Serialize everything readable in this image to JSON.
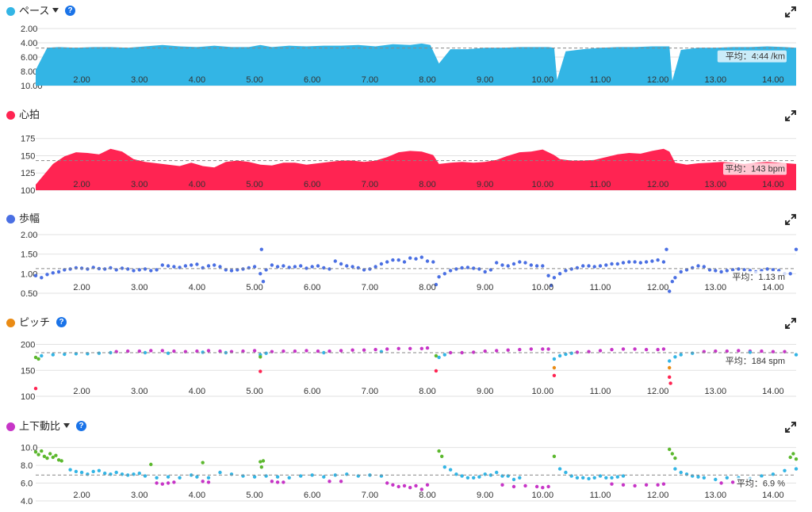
{
  "x_ticks": [
    "2.00",
    "3.00",
    "4.00",
    "5.00",
    "6.00",
    "7.00",
    "8.00",
    "9.00",
    "10.00",
    "11.00",
    "12.00",
    "13.00",
    "14.00"
  ],
  "panels": [
    {
      "id": "pace",
      "title": "ペース",
      "color": "#33b5e5",
      "has_dropdown": true,
      "has_help": true,
      "help_label": "?",
      "avg_label": "平均：4:44 /km"
    },
    {
      "id": "hr",
      "title": "心拍",
      "color": "#ff2452",
      "has_dropdown": false,
      "has_help": false,
      "avg_label": "平均：143 bpm"
    },
    {
      "id": "stride",
      "title": "歩幅",
      "color": "#4a6fe3",
      "has_dropdown": false,
      "has_help": false,
      "avg_label": "平均：1.13 m"
    },
    {
      "id": "cadence",
      "title": "ピッチ",
      "color": "#ea8b14",
      "has_dropdown": false,
      "has_help": true,
      "help_label": "?",
      "avg_label": "平均：184 spm"
    },
    {
      "id": "vr",
      "title": "上下動比",
      "color": "#c735c7",
      "has_dropdown": true,
      "has_help": true,
      "help_label": "?",
      "avg_label": "平均：6.9 %"
    }
  ],
  "chart_data": [
    {
      "type": "area",
      "title": "ペース",
      "y_unit": "min/km",
      "y_reversed": true,
      "y_ticks": [
        "2.00",
        "4.00",
        "6.00",
        "8.00",
        "10.00"
      ],
      "ylim": [
        10,
        2
      ],
      "xlim": [
        1.2,
        14.4
      ],
      "average": 4.73,
      "x": [
        1.2,
        1.4,
        1.6,
        1.9,
        2.2,
        2.5,
        2.8,
        3.1,
        3.4,
        3.7,
        4.0,
        4.3,
        4.6,
        4.9,
        5.1,
        5.3,
        5.6,
        5.9,
        6.2,
        6.5,
        6.8,
        7.1,
        7.4,
        7.7,
        7.9,
        8.05,
        8.2,
        8.4,
        8.7,
        9.0,
        9.3,
        9.6,
        9.9,
        10.1,
        10.2,
        10.25,
        10.4,
        10.7,
        11.0,
        11.3,
        11.6,
        11.9,
        12.1,
        12.2,
        12.25,
        12.4,
        12.7,
        13.0,
        13.3,
        13.6,
        13.9,
        14.2,
        14.4
      ],
      "values": [
        7.8,
        4.7,
        4.6,
        4.7,
        4.6,
        4.6,
        4.7,
        4.5,
        4.3,
        4.5,
        4.6,
        4.4,
        4.6,
        4.6,
        4.3,
        4.6,
        4.4,
        4.5,
        4.4,
        4.4,
        4.3,
        4.5,
        4.2,
        4.3,
        4.1,
        4.3,
        6.9,
        4.9,
        4.9,
        4.7,
        4.7,
        4.6,
        4.6,
        4.6,
        4.7,
        9.2,
        5.2,
        4.9,
        4.7,
        4.6,
        4.6,
        4.5,
        4.5,
        4.5,
        9.3,
        5.0,
        4.7,
        4.7,
        4.6,
        4.6,
        4.5,
        4.6,
        4.7
      ]
    },
    {
      "type": "area",
      "title": "心拍",
      "y_unit": "bpm",
      "y_ticks": [
        "100",
        "125",
        "150",
        "175"
      ],
      "ylim": [
        100,
        185
      ],
      "xlim": [
        1.2,
        14.4
      ],
      "average": 143,
      "x": [
        1.2,
        1.3,
        1.5,
        1.7,
        1.9,
        2.1,
        2.3,
        2.5,
        2.7,
        2.9,
        3.1,
        3.3,
        3.5,
        3.7,
        3.9,
        4.1,
        4.3,
        4.5,
        4.7,
        4.9,
        5.1,
        5.3,
        5.5,
        5.7,
        5.9,
        6.1,
        6.3,
        6.5,
        6.7,
        6.9,
        7.1,
        7.3,
        7.5,
        7.7,
        7.9,
        8.1,
        8.2,
        8.4,
        8.6,
        8.8,
        9.0,
        9.2,
        9.4,
        9.6,
        9.8,
        10.0,
        10.2,
        10.3,
        10.5,
        10.7,
        10.9,
        11.1,
        11.3,
        11.5,
        11.7,
        11.9,
        12.1,
        12.2,
        12.3,
        12.5,
        12.7,
        12.9,
        13.1,
        13.3,
        13.5,
        13.7,
        13.9,
        14.1,
        14.4
      ],
      "values": [
        108,
        118,
        138,
        149,
        155,
        154,
        152,
        160,
        156,
        145,
        141,
        139,
        137,
        135,
        140,
        135,
        133,
        141,
        143,
        141,
        137,
        136,
        140,
        140,
        137,
        139,
        141,
        143,
        143,
        141,
        143,
        148,
        155,
        157,
        156,
        151,
        138,
        140,
        141,
        140,
        141,
        144,
        150,
        155,
        156,
        159,
        151,
        145,
        143,
        143,
        144,
        148,
        152,
        154,
        153,
        157,
        160,
        156,
        140,
        137,
        139,
        140,
        141,
        140,
        138,
        140,
        141,
        140,
        138
      ]
    },
    {
      "type": "scatter",
      "title": "歩幅",
      "y_unit": "m",
      "y_ticks": [
        "0.50",
        "1.00",
        "1.50",
        "2.00"
      ],
      "ylim": [
        0.5,
        2.0
      ],
      "xlim": [
        1.2,
        14.4
      ],
      "average": 1.13,
      "x": [
        1.2,
        1.3,
        1.4,
        1.5,
        1.6,
        1.7,
        1.8,
        1.9,
        2.0,
        2.1,
        2.2,
        2.3,
        2.4,
        2.5,
        2.6,
        2.7,
        2.8,
        2.9,
        3.0,
        3.1,
        3.2,
        3.3,
        3.4,
        3.5,
        3.6,
        3.7,
        3.8,
        3.9,
        4.0,
        4.1,
        4.2,
        4.3,
        4.4,
        4.5,
        4.6,
        4.7,
        4.8,
        4.9,
        5.0,
        5.1,
        5.12,
        5.15,
        5.2,
        5.3,
        5.4,
        5.5,
        5.6,
        5.7,
        5.8,
        5.9,
        6.0,
        6.1,
        6.2,
        6.3,
        6.4,
        6.5,
        6.6,
        6.7,
        6.8,
        6.9,
        7.0,
        7.1,
        7.2,
        7.3,
        7.4,
        7.5,
        7.6,
        7.7,
        7.8,
        7.9,
        8.0,
        8.1,
        8.15,
        8.2,
        8.3,
        8.4,
        8.5,
        8.6,
        8.7,
        8.8,
        8.9,
        9.0,
        9.1,
        9.2,
        9.3,
        9.4,
        9.5,
        9.6,
        9.7,
        9.8,
        9.9,
        10.0,
        10.1,
        10.15,
        10.2,
        10.3,
        10.4,
        10.5,
        10.6,
        10.7,
        10.8,
        10.9,
        11.0,
        11.1,
        11.2,
        11.3,
        11.4,
        11.5,
        11.6,
        11.7,
        11.8,
        11.9,
        12.0,
        12.1,
        12.15,
        12.2,
        12.25,
        12.3,
        12.4,
        12.5,
        12.6,
        12.7,
        12.8,
        12.9,
        13.0,
        13.1,
        13.2,
        13.3,
        13.4,
        13.5,
        13.6,
        13.7,
        13.8,
        13.9,
        14.0,
        14.1,
        14.2,
        14.3,
        14.4
      ],
      "values": [
        0.95,
        0.9,
        0.98,
        1.02,
        1.05,
        1.1,
        1.12,
        1.15,
        1.14,
        1.12,
        1.16,
        1.13,
        1.12,
        1.15,
        1.1,
        1.14,
        1.12,
        1.08,
        1.1,
        1.12,
        1.08,
        1.1,
        1.22,
        1.2,
        1.18,
        1.16,
        1.2,
        1.22,
        1.24,
        1.15,
        1.2,
        1.22,
        1.18,
        1.1,
        1.08,
        1.1,
        1.12,
        1.15,
        1.18,
        1.0,
        1.62,
        0.8,
        1.1,
        1.22,
        1.18,
        1.2,
        1.16,
        1.18,
        1.2,
        1.14,
        1.18,
        1.2,
        1.15,
        1.12,
        1.32,
        1.25,
        1.2,
        1.18,
        1.15,
        1.1,
        1.12,
        1.18,
        1.25,
        1.3,
        1.35,
        1.35,
        1.3,
        1.4,
        1.38,
        1.42,
        1.32,
        1.3,
        0.72,
        0.92,
        1.0,
        1.08,
        1.12,
        1.15,
        1.16,
        1.14,
        1.12,
        1.05,
        1.1,
        1.28,
        1.22,
        1.2,
        1.25,
        1.3,
        1.28,
        1.22,
        1.2,
        1.2,
        0.95,
        0.7,
        0.9,
        1.0,
        1.08,
        1.12,
        1.15,
        1.2,
        1.2,
        1.18,
        1.2,
        1.22,
        1.25,
        1.25,
        1.28,
        1.3,
        1.3,
        1.28,
        1.3,
        1.32,
        1.35,
        1.3,
        1.62,
        0.55,
        0.8,
        0.9,
        1.05,
        1.1,
        1.15,
        1.2,
        1.18,
        1.1,
        1.08,
        1.05,
        1.08,
        1.1,
        1.12,
        1.1,
        1.08,
        1.05,
        1.08,
        1.12,
        1.1,
        1.08,
        1.0,
        1.0,
        1.62
      ]
    },
    {
      "type": "scatter",
      "title": "ピッチ",
      "y_unit": "spm",
      "y_ticks": [
        "100",
        "150",
        "200"
      ],
      "ylim": [
        100,
        210
      ],
      "xlim": [
        1.2,
        14.4
      ],
      "average": 184,
      "series": [
        {
          "name": "",
          "color": "#c735c7",
          "x": [
            2.6,
            2.8,
            3.0,
            3.2,
            3.4,
            3.6,
            3.8,
            4.0,
            4.2,
            4.4,
            4.6,
            4.8,
            5.0,
            5.3,
            5.5,
            5.7,
            5.9,
            6.1,
            6.3,
            6.5,
            6.7,
            6.9,
            7.1,
            7.3,
            7.5,
            7.7,
            7.9,
            8.0,
            8.4,
            8.6,
            8.8,
            9.0,
            9.2,
            9.4,
            9.6,
            9.8,
            10.0,
            10.1,
            10.6,
            10.8,
            11.0,
            11.2,
            11.4,
            11.6,
            11.8,
            12.0,
            12.1,
            12.8,
            13.0,
            13.2,
            13.4,
            13.6,
            13.8,
            14.0,
            14.2
          ],
          "values": [
            186,
            187,
            187,
            188,
            188,
            187,
            186,
            187,
            188,
            187,
            186,
            187,
            188,
            186,
            187,
            187,
            188,
            187,
            187,
            188,
            189,
            189,
            190,
            191,
            192,
            192,
            192,
            193,
            184,
            184,
            185,
            187,
            188,
            189,
            190,
            191,
            191,
            191,
            185,
            186,
            188,
            190,
            191,
            191,
            190,
            190,
            191,
            186,
            187,
            187,
            188,
            187,
            187,
            186,
            186
          ]
        },
        {
          "name": "",
          "color": "#33b5e5",
          "x": [
            1.3,
            1.5,
            1.7,
            1.9,
            2.1,
            2.3,
            2.5,
            3.1,
            3.5,
            4.1,
            4.5,
            5.1,
            5.2,
            6.2,
            7.2,
            8.2,
            8.3,
            10.2,
            10.3,
            10.4,
            10.5,
            12.2,
            12.3,
            12.4,
            12.6,
            13.6,
            14.4
          ],
          "values": [
            178,
            180,
            181,
            182,
            182,
            183,
            184,
            184,
            183,
            185,
            184,
            180,
            183,
            184,
            186,
            175,
            180,
            172,
            178,
            181,
            183,
            168,
            176,
            180,
            183,
            185,
            180
          ]
        },
        {
          "name": "",
          "color": "#5cb82e",
          "x": [
            1.2,
            1.25,
            5.1,
            8.15
          ],
          "values": [
            175,
            172,
            176,
            178
          ]
        },
        {
          "name": "",
          "color": "#ea8b14",
          "x": [
            10.2,
            12.2
          ],
          "values": [
            155,
            155
          ]
        },
        {
          "name": "",
          "color": "#ff2452",
          "x": [
            1.2,
            5.1,
            8.15,
            10.2,
            12.2,
            12.22
          ],
          "values": [
            115,
            148,
            149,
            140,
            137,
            125
          ]
        }
      ]
    },
    {
      "type": "scatter",
      "title": "上下動比",
      "y_unit": "%",
      "y_ticks": [
        "4.0",
        "6.0",
        "8.0",
        "10.0"
      ],
      "ylim": [
        4,
        10.5
      ],
      "xlim": [
        1.2,
        14.4
      ],
      "average": 6.9,
      "series": [
        {
          "name": "",
          "color": "#33b5e5",
          "x": [
            1.8,
            1.9,
            2.0,
            2.1,
            2.2,
            2.3,
            2.4,
            2.5,
            2.6,
            2.7,
            2.8,
            2.9,
            3.0,
            3.1,
            3.3,
            3.5,
            3.7,
            3.9,
            4.0,
            4.2,
            4.4,
            4.6,
            4.8,
            5.0,
            5.2,
            5.4,
            5.6,
            5.8,
            6.0,
            6.2,
            6.4,
            6.6,
            6.8,
            7.0,
            7.2,
            8.3,
            8.4,
            8.5,
            8.6,
            8.7,
            8.8,
            8.9,
            9.0,
            9.1,
            9.2,
            9.3,
            9.4,
            9.5,
            9.6,
            10.3,
            10.4,
            10.5,
            10.6,
            10.7,
            10.8,
            10.9,
            11.0,
            11.1,
            11.2,
            11.3,
            11.4,
            12.3,
            12.4,
            12.5,
            12.6,
            12.7,
            12.8,
            13.0,
            13.2,
            13.4,
            13.6,
            13.8,
            14.0,
            14.2,
            14.4
          ],
          "values": [
            7.5,
            7.3,
            7.2,
            7.0,
            7.3,
            7.4,
            7.1,
            7.0,
            7.2,
            7.0,
            6.9,
            7.0,
            7.1,
            6.8,
            6.6,
            6.7,
            6.6,
            6.9,
            6.7,
            6.6,
            7.2,
            7.0,
            6.8,
            6.7,
            6.8,
            6.7,
            6.6,
            6.8,
            6.9,
            6.7,
            6.9,
            7.0,
            6.8,
            6.9,
            6.8,
            7.8,
            7.5,
            7.0,
            6.8,
            6.6,
            6.6,
            6.7,
            7.0,
            6.9,
            7.2,
            6.8,
            6.8,
            6.4,
            6.6,
            7.6,
            7.2,
            6.8,
            6.6,
            6.6,
            6.5,
            6.6,
            6.8,
            6.6,
            6.6,
            6.7,
            6.8,
            7.6,
            7.2,
            7.0,
            6.8,
            6.7,
            6.6,
            6.4,
            6.6,
            6.6,
            6.5,
            6.8,
            7.0,
            7.4,
            7.6
          ]
        },
        {
          "name": "",
          "color": "#c735c7",
          "x": [
            3.3,
            3.4,
            3.5,
            3.6,
            4.1,
            4.2,
            5.3,
            5.4,
            5.5,
            6.3,
            6.5,
            7.3,
            7.4,
            7.5,
            7.6,
            7.7,
            7.8,
            7.9,
            8.0,
            9.3,
            9.5,
            9.7,
            9.9,
            10.0,
            10.1,
            11.2,
            11.4,
            11.6,
            11.8,
            12.0,
            12.1,
            13.1,
            13.3
          ],
          "values": [
            6.0,
            5.9,
            6.0,
            6.1,
            6.2,
            6.1,
            6.2,
            6.1,
            6.1,
            6.2,
            6.2,
            6.0,
            5.8,
            5.6,
            5.7,
            5.5,
            5.7,
            5.3,
            5.8,
            5.8,
            5.6,
            5.7,
            5.6,
            5.5,
            5.6,
            5.9,
            5.8,
            5.7,
            5.8,
            5.8,
            5.9,
            6.0,
            6.1
          ]
        },
        {
          "name": "",
          "color": "#5cb82e",
          "x": [
            1.2,
            1.25,
            1.3,
            1.35,
            1.4,
            1.45,
            1.5,
            1.55,
            1.6,
            1.65,
            3.2,
            4.1,
            5.1,
            5.12,
            5.15,
            8.2,
            8.25,
            10.2,
            12.2,
            12.25,
            12.3,
            14.3,
            14.35,
            14.4
          ],
          "values": [
            9.5,
            9.2,
            9.6,
            9.0,
            8.8,
            9.3,
            8.9,
            9.1,
            8.6,
            8.5,
            8.1,
            8.3,
            8.4,
            7.8,
            8.5,
            9.6,
            9.0,
            9.0,
            9.8,
            9.3,
            8.8,
            8.9,
            9.3,
            8.7
          ]
        }
      ]
    }
  ]
}
